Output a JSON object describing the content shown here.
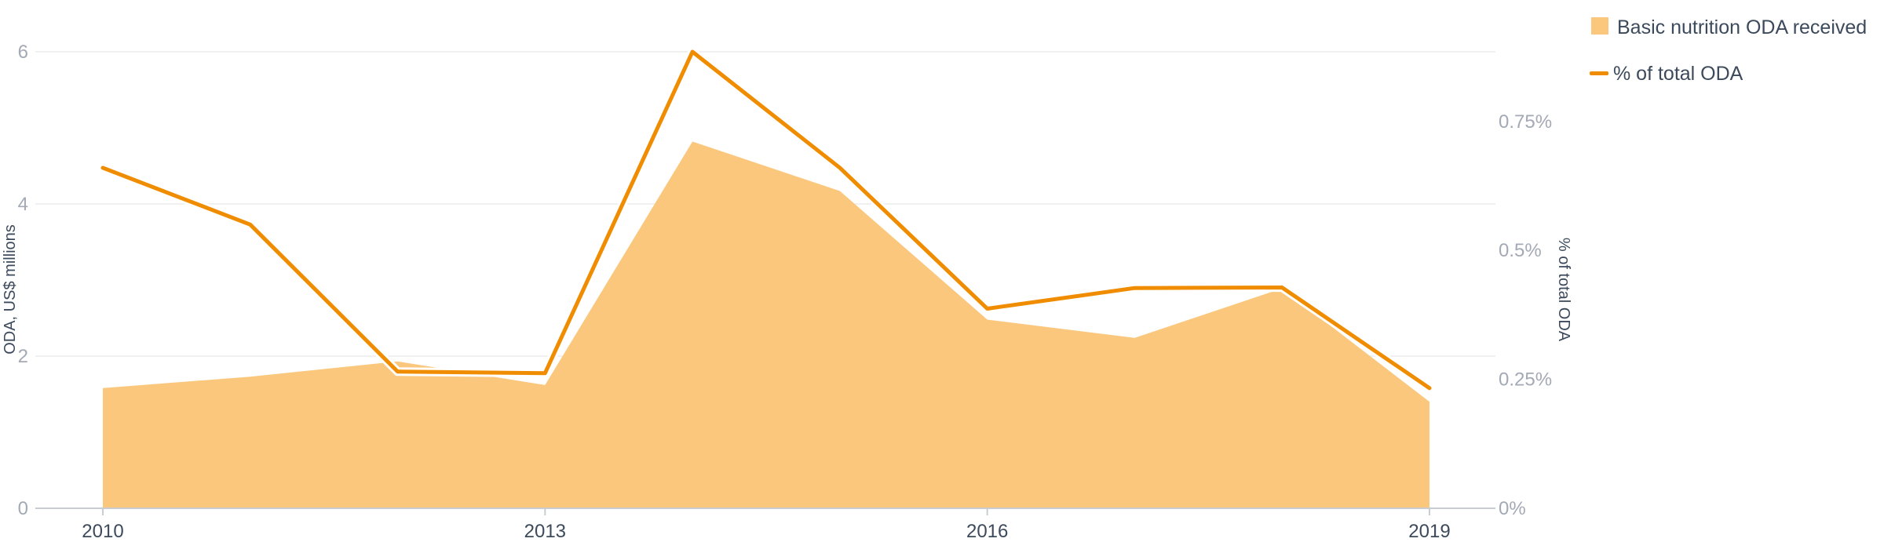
{
  "chart_data": {
    "type": "area",
    "x": [
      2010,
      2011,
      2012,
      2013,
      2014,
      2015,
      2016,
      2017,
      2018,
      2019
    ],
    "x_ticks": [
      "2010",
      "2013",
      "2016",
      "2019"
    ],
    "series": [
      {
        "name": "Basic nutrition ODA received",
        "type": "area",
        "axis": "left",
        "color": "#fac77c",
        "values": [
          1.58,
          1.73,
          1.93,
          1.62,
          4.82,
          4.17,
          2.48,
          2.24,
          2.89,
          1.4
        ]
      },
      {
        "name": "% of total ODA",
        "type": "line",
        "axis": "right",
        "color": "#f08c00",
        "values": [
          0.66,
          0.55,
          0.265,
          0.262,
          0.885,
          0.66,
          0.387,
          0.427,
          0.428,
          0.233
        ]
      }
    ],
    "y_left": {
      "label": "ODA, US$ millions",
      "ylim": [
        0,
        6
      ],
      "ticks": [
        "0",
        "2",
        "4",
        "6"
      ]
    },
    "y_right": {
      "label": "% of total ODA",
      "ylim": [
        0,
        0.885
      ],
      "ticks": [
        "0%",
        "0.25%",
        "0.5%",
        "0.75%"
      ],
      "tick_values": [
        0,
        0.25,
        0.5,
        0.75
      ]
    },
    "grid": true,
    "legend_position": "top-right"
  }
}
